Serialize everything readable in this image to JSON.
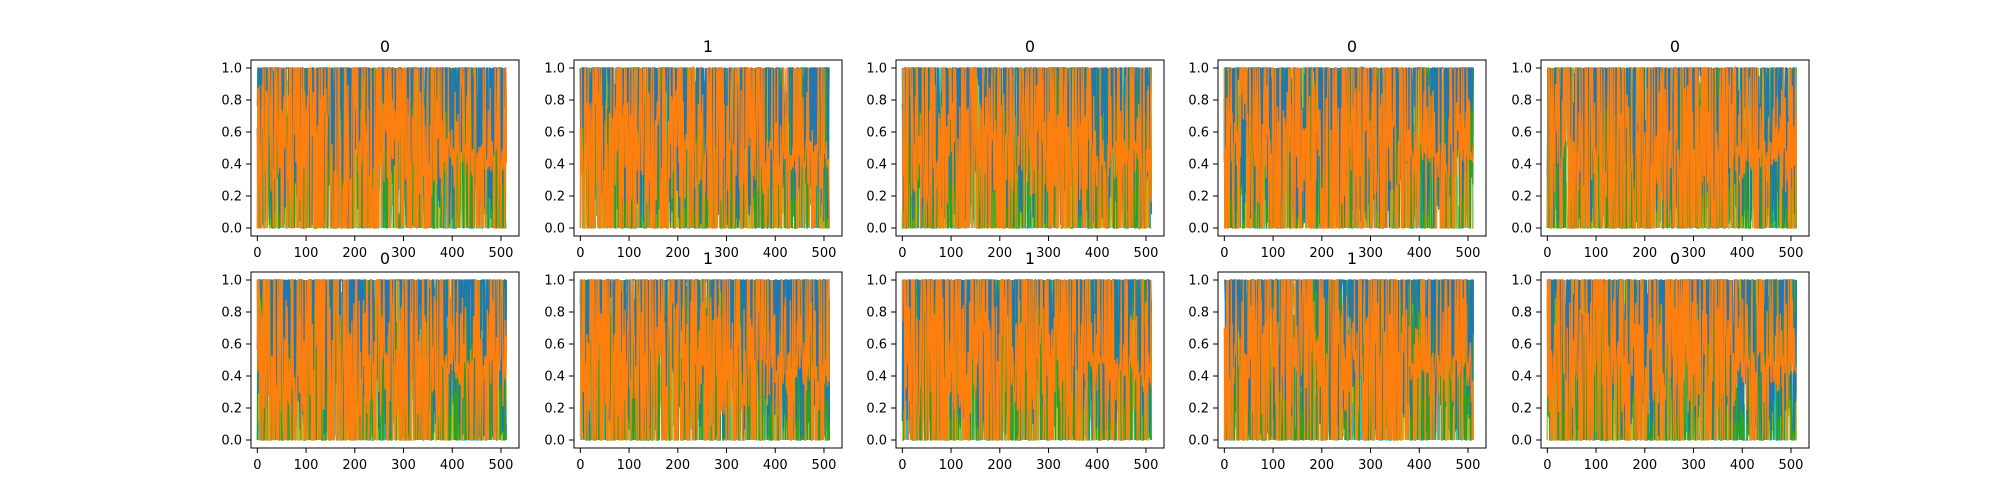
{
  "chart_data": {
    "type": "line",
    "layout": {
      "rows": 2,
      "cols": 5
    },
    "xlim": [
      -13,
      537
    ],
    "ylim": [
      -0.05,
      1.05
    ],
    "x_ticks": [
      0,
      100,
      200,
      300,
      400,
      500
    ],
    "y_ticks": [
      0.0,
      0.2,
      0.4,
      0.6,
      0.8,
      1.0
    ],
    "x_tick_labels": [
      "0",
      "100",
      "200",
      "300",
      "400",
      "500"
    ],
    "y_tick_labels": [
      "0.0",
      "0.2",
      "0.4",
      "0.6",
      "0.8",
      "1.0"
    ],
    "n_points": 512,
    "grid": false,
    "series_colors": [
      "#17becf",
      "#bcbd22",
      "#2ca02c",
      "#1f77b4",
      "#ff7f0e"
    ],
    "panels": [
      {
        "title": "0",
        "seed": 11
      },
      {
        "title": "1",
        "seed": 23
      },
      {
        "title": "0",
        "seed": 37
      },
      {
        "title": "0",
        "seed": 41
      },
      {
        "title": "0",
        "seed": 53
      },
      {
        "title": "0",
        "seed": 67
      },
      {
        "title": "1",
        "seed": 71
      },
      {
        "title": "1",
        "seed": 83
      },
      {
        "title": "1",
        "seed": 97
      },
      {
        "title": "0",
        "seed": 101
      }
    ]
  }
}
